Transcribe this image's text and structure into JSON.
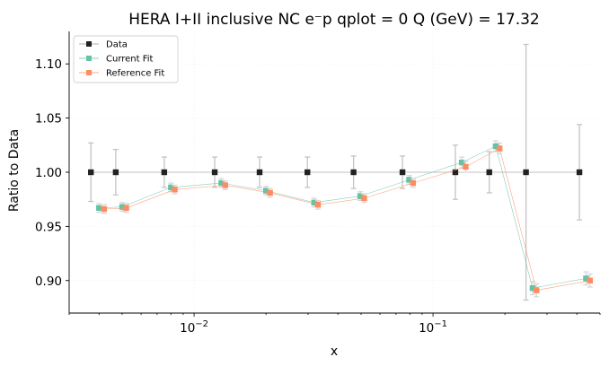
{
  "chart_data": {
    "type": "scatter",
    "title": "HERA I+II inclusive NC e⁻p qplot = 0 Q (GeV) = 17.32",
    "xlabel": "x",
    "ylabel": "Ratio to Data",
    "xscale": "log",
    "xlim": [
      0.003,
      0.5
    ],
    "ylim": [
      0.87,
      1.13
    ],
    "yticks": [
      "0.90",
      "0.95",
      "1.00",
      "1.05",
      "1.10"
    ],
    "xticks": [
      {
        "value": 0.01,
        "base": "10",
        "exp": "−2"
      },
      {
        "value": 0.1,
        "base": "10",
        "exp": "−1"
      }
    ],
    "grid": true,
    "legend_position": "top-left",
    "series": [
      {
        "name": "Data",
        "color": "#222222",
        "marker": "square",
        "x": [
          0.0037,
          0.0047,
          0.0075,
          0.0122,
          0.0188,
          0.0298,
          0.0465,
          0.0745,
          0.124,
          0.172,
          0.245,
          0.41
        ],
        "y": [
          1.0,
          1.0,
          1.0,
          1.0,
          1.0,
          1.0,
          1.0,
          1.0,
          1.0,
          1.0,
          1.0,
          1.0
        ],
        "err": [
          0.027,
          0.021,
          0.014,
          0.014,
          0.014,
          0.014,
          0.015,
          0.015,
          0.025,
          0.019,
          0.118,
          0.044
        ]
      },
      {
        "name": "Current Fit",
        "color": "#66c2a5",
        "marker": "square",
        "x": [
          0.004,
          0.005,
          0.008,
          0.013,
          0.02,
          0.0318,
          0.0496,
          0.0794,
          0.132,
          0.183,
          0.261,
          0.437
        ],
        "y": [
          0.967,
          0.968,
          0.986,
          0.99,
          0.983,
          0.972,
          0.978,
          0.993,
          1.009,
          1.024,
          0.893,
          0.902
        ],
        "err": [
          0.004,
          0.004,
          0.004,
          0.004,
          0.004,
          0.004,
          0.004,
          0.004,
          0.005,
          0.005,
          0.006,
          0.006
        ]
      },
      {
        "name": "Reference Fit",
        "color": "#fc8d62",
        "marker": "square",
        "x": [
          0.0042,
          0.0052,
          0.0083,
          0.0135,
          0.0208,
          0.033,
          0.0515,
          0.0825,
          0.137,
          0.19,
          0.271,
          0.454
        ],
        "y": [
          0.966,
          0.967,
          0.984,
          0.988,
          0.981,
          0.97,
          0.976,
          0.99,
          1.005,
          1.022,
          0.891,
          0.9
        ],
        "err": [
          0.004,
          0.004,
          0.004,
          0.004,
          0.004,
          0.004,
          0.004,
          0.004,
          0.005,
          0.005,
          0.006,
          0.006
        ]
      }
    ]
  }
}
